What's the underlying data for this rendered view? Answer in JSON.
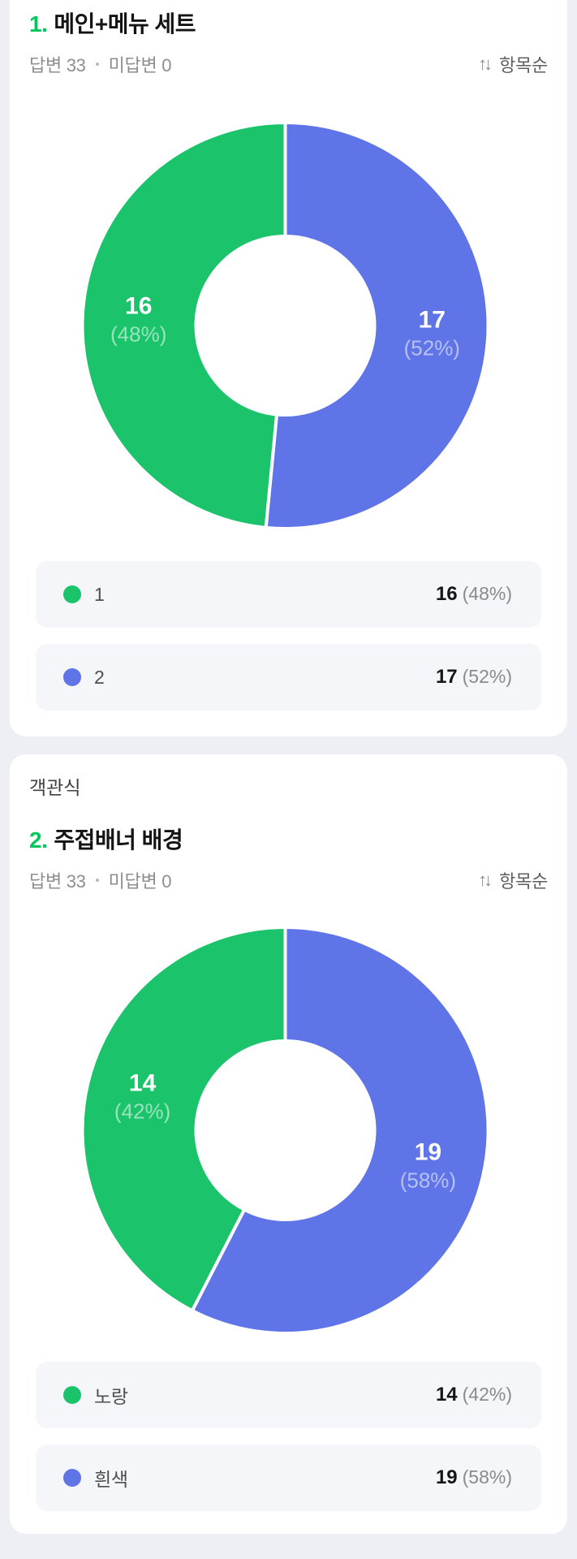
{
  "colors": {
    "page_bg": "#EDEFF4",
    "card_bg": "#FFFFFF",
    "accent_green": "#03C75A",
    "chart_green": "#1BC46B",
    "chart_blue": "#5E74E7",
    "legend_row_bg": "#F4F6F9"
  },
  "sort": {
    "icon_glyph": "↑↓",
    "label": "항목순"
  },
  "cards": [
    {
      "number": "1.",
      "title": "메인+메뉴 세트",
      "meta": {
        "answered": "답변 33",
        "unanswered": "미답변 0"
      },
      "options": [
        {
          "label": "1",
          "value": "16",
          "pct": "(48%)",
          "color": "#1BC46B"
        },
        {
          "label": "2",
          "value": "17",
          "pct": "(52%)",
          "color": "#5E74E7"
        }
      ]
    },
    {
      "type_label": "객관식",
      "number": "2.",
      "title": "주접배너 배경",
      "meta": {
        "answered": "답변 33",
        "unanswered": "미답변 0"
      },
      "options": [
        {
          "label": "노랑",
          "value": "14",
          "pct": "(42%)",
          "color": "#1BC46B"
        },
        {
          "label": "흰색",
          "value": "19",
          "pct": "(58%)",
          "color": "#5E74E7"
        }
      ]
    }
  ],
  "chart_data": [
    {
      "type": "pie",
      "donut": true,
      "title": "1. 메인+메뉴 세트",
      "categories": [
        "1",
        "2"
      ],
      "values": [
        16,
        17
      ],
      "percentages": [
        48,
        52
      ],
      "colors": [
        "#1BC46B",
        "#5E74E7"
      ],
      "labels": "inside",
      "legend_position": "below",
      "start_angle_deg": 0,
      "direction": "option1-left-counterclockwise"
    },
    {
      "type": "pie",
      "donut": true,
      "title": "2. 주접배너 배경",
      "categories": [
        "노랑",
        "흰색"
      ],
      "values": [
        14,
        19
      ],
      "percentages": [
        42,
        58
      ],
      "colors": [
        "#1BC46B",
        "#5E74E7"
      ],
      "labels": "inside",
      "legend_position": "below",
      "start_angle_deg": 0,
      "direction": "option1-left-counterclockwise"
    }
  ]
}
